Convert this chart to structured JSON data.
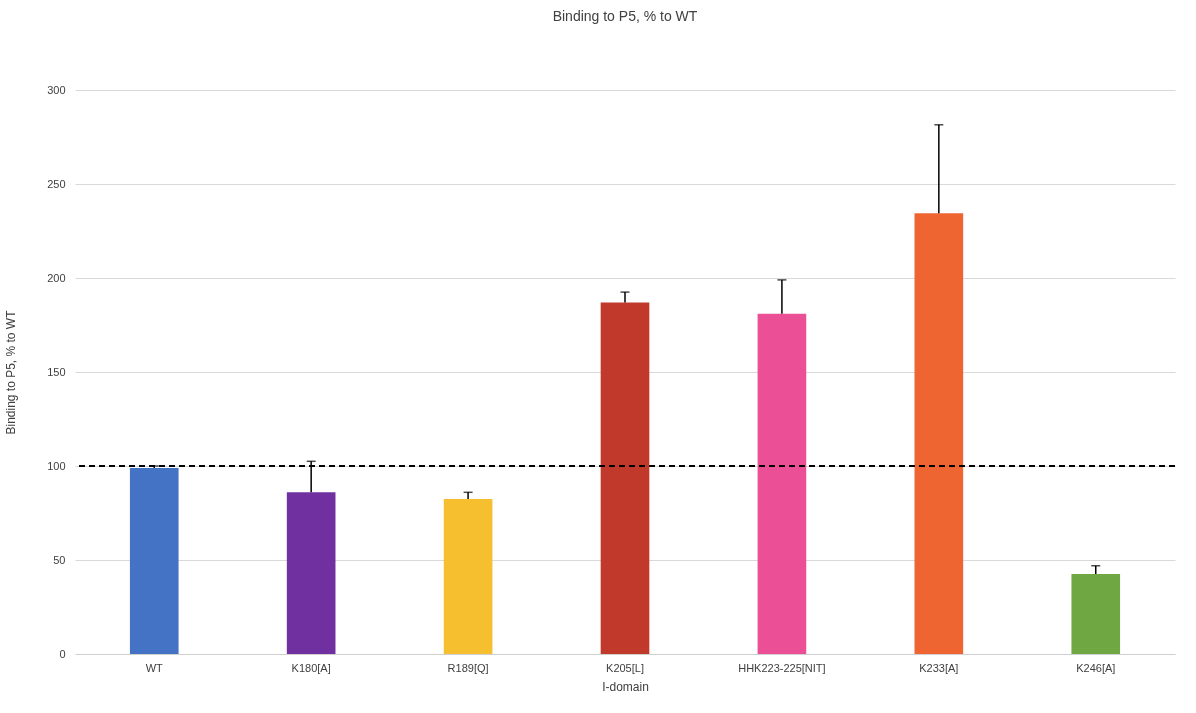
{
  "chart_data": {
    "type": "bar",
    "title": "Binding to P5, % to WT",
    "xlabel": "I-domain",
    "ylabel": "Binding to P5, % to WT",
    "categories": [
      "WT",
      "K180[A]",
      "R189[Q]",
      "K205[L]",
      "HHK223-225[NIT]",
      "K233[A]",
      "K246[A]"
    ],
    "values": [
      99,
      86,
      82.5,
      187,
      181,
      234.5,
      42.5
    ],
    "errors": [
      [
        99,
        100
      ],
      [
        86,
        102.5
      ],
      [
        82.5,
        86
      ],
      [
        187,
        192.5
      ],
      [
        181,
        199
      ],
      [
        234.5,
        281.5
      ],
      [
        42.5,
        47
      ]
    ],
    "colors": [
      "#4472c4",
      "#7030a0",
      "#f6bf2f",
      "#c0392b",
      "#eb4f96",
      "#ee6531",
      "#6fa843"
    ],
    "ylim": [
      0,
      300
    ],
    "yticks": [
      0,
      50,
      100,
      150,
      200,
      250,
      300
    ],
    "grid": "y",
    "ref_lines": [
      {
        "axis": "y",
        "value": 100,
        "color": "#000000",
        "line_style": "dashed"
      }
    ]
  }
}
